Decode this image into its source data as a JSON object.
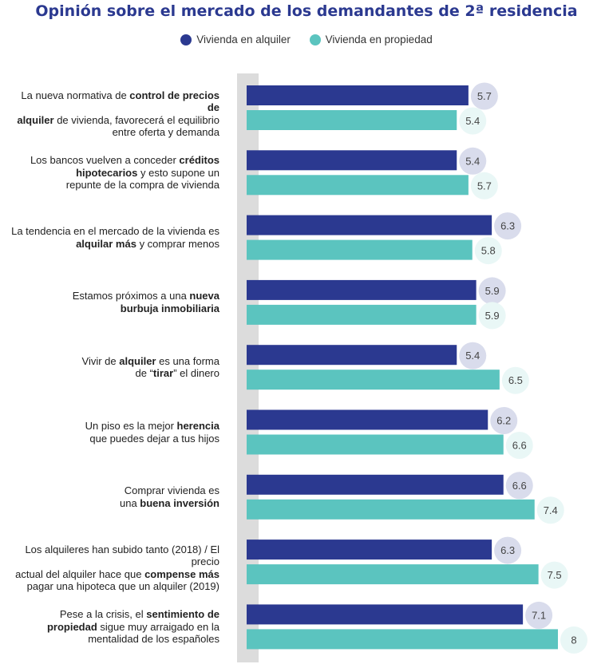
{
  "chart_data": {
    "type": "bar",
    "orientation": "horizontal",
    "title": "Opinión sobre el mercado de los demandantes de 2ª residencia",
    "series": [
      {
        "name": "Vivienda en alquiler",
        "color": "#2b3990",
        "values": [
          5.7,
          5.4,
          6.3,
          5.9,
          5.4,
          6.2,
          6.6,
          6.3,
          7.1
        ]
      },
      {
        "name": "Vivienda en propiedad",
        "color": "#5bc4bf",
        "values": [
          5.4,
          5.7,
          5.8,
          5.9,
          6.5,
          6.6,
          7.4,
          7.5,
          8
        ]
      }
    ],
    "value_labels": [
      [
        "5.7",
        "5.4"
      ],
      [
        "5.4",
        "5.7"
      ],
      [
        "6.3",
        "5.8"
      ],
      [
        "5.9",
        "5.9"
      ],
      [
        "5.4",
        "6.5"
      ],
      [
        "6.2",
        "6.6"
      ],
      [
        "6.6",
        "7.4"
      ],
      [
        "6.3",
        "7.5"
      ],
      [
        "7.1",
        "8"
      ]
    ],
    "categories": [
      [
        [
          "La nueva normativa de ",
          false
        ],
        [
          "control de precios de",
          true
        ],
        [
          "\n",
          false
        ],
        [
          "alquiler",
          true
        ],
        [
          " de vivienda, favorecerá el equilibrio\nentre oferta y demanda",
          false
        ]
      ],
      [
        [
          "Los bancos vuelven a conceder ",
          false
        ],
        [
          "créditos\nhipotecarios",
          true
        ],
        [
          " y esto supone un\nrepunte de la compra de vivienda",
          false
        ]
      ],
      [
        [
          "La tendencia en el mercado de la vivienda es\n",
          false
        ],
        [
          "alquilar más",
          true
        ],
        [
          " y comprar menos",
          false
        ]
      ],
      [
        [
          "Estamos próximos a una ",
          false
        ],
        [
          "nueva\nburbuja inmobiliaria",
          true
        ]
      ],
      [
        [
          "Vivir de ",
          false
        ],
        [
          "alquiler",
          true
        ],
        [
          " es una forma\nde “",
          false
        ],
        [
          "tirar",
          true
        ],
        [
          "” el dinero",
          false
        ]
      ],
      [
        [
          "Un piso es la mejor ",
          false
        ],
        [
          "herencia",
          true
        ],
        [
          "\nque puedes dejar a tus hijos",
          false
        ]
      ],
      [
        [
          "Comprar vivienda es\nuna ",
          false
        ],
        [
          "buena inversión",
          true
        ]
      ],
      [
        [
          "Los alquileres han subido tanto (2018) / El precio\nactual del alquiler hace que ",
          false
        ],
        [
          "compense más",
          true
        ],
        [
          "\npagar una hipoteca que un alquiler (2019)",
          false
        ]
      ],
      [
        [
          "Pese a la crisis, el ",
          false
        ],
        [
          "sentimiento de\npropiedad",
          true
        ],
        [
          " sigue muy arraigado en la\nmentalidad de los españoles",
          false
        ]
      ]
    ],
    "bubble_colors": {
      "alquiler": "#d9dcec",
      "propiedad": "#e9f7f6"
    },
    "axis_color": "#dcdcdc"
  }
}
